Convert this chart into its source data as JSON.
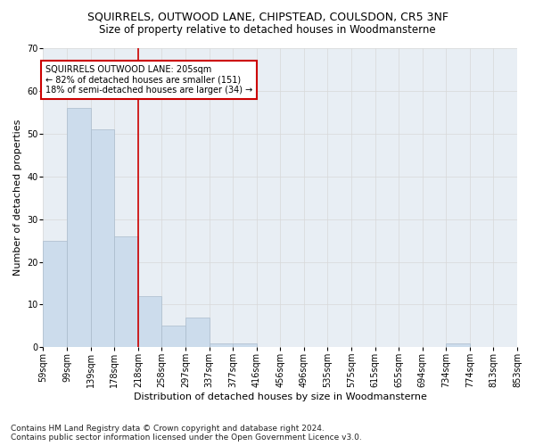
{
  "title": "SQUIRRELS, OUTWOOD LANE, CHIPSTEAD, COULSDON, CR5 3NF",
  "subtitle": "Size of property relative to detached houses in Woodmansterne",
  "xlabel": "Distribution of detached houses by size in Woodmansterne",
  "ylabel": "Number of detached properties",
  "bar_values": [
    25,
    56,
    51,
    26,
    12,
    5,
    7,
    1,
    1,
    0,
    0,
    0,
    0,
    0,
    0,
    0,
    0,
    1,
    0,
    0
  ],
  "bin_labels": [
    "59sqm",
    "99sqm",
    "139sqm",
    "178sqm",
    "218sqm",
    "258sqm",
    "297sqm",
    "337sqm",
    "377sqm",
    "416sqm",
    "456sqm",
    "496sqm",
    "535sqm",
    "575sqm",
    "615sqm",
    "655sqm",
    "694sqm",
    "734sqm",
    "774sqm",
    "813sqm",
    "853sqm"
  ],
  "bar_color": "#ccdcec",
  "bar_edge_color": "#aabbcc",
  "grid_color": "#d8d8d8",
  "red_line_bin": 4,
  "annotation_text": "SQUIRRELS OUTWOOD LANE: 205sqm\n← 82% of detached houses are smaller (151)\n18% of semi-detached houses are larger (34) →",
  "annotation_box_color": "#ffffff",
  "annotation_box_edge": "#cc0000",
  "red_line_color": "#cc0000",
  "ylim": [
    0,
    70
  ],
  "yticks": [
    0,
    10,
    20,
    30,
    40,
    50,
    60,
    70
  ],
  "footnote": "Contains HM Land Registry data © Crown copyright and database right 2024.\nContains public sector information licensed under the Open Government Licence v3.0.",
  "title_fontsize": 9,
  "subtitle_fontsize": 8.5,
  "xlabel_fontsize": 8,
  "ylabel_fontsize": 8,
  "tick_fontsize": 7,
  "annot_fontsize": 7,
  "footnote_fontsize": 6.5,
  "bg_color": "#e8eef4"
}
